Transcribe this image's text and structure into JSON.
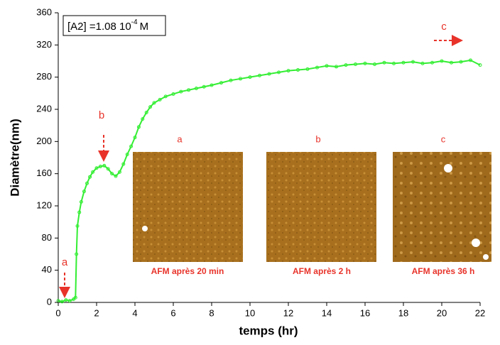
{
  "chart_data": {
    "type": "line",
    "xlabel": "temps (hr)",
    "ylabel": "Diamètre(nm)",
    "x": [
      0,
      0.2,
      0.4,
      0.6,
      0.8,
      0.9,
      0.95,
      1.0,
      1.1,
      1.2,
      1.35,
      1.5,
      1.65,
      1.8,
      2.0,
      2.2,
      2.4,
      2.6,
      2.8,
      3.0,
      3.2,
      3.4,
      3.6,
      3.8,
      4.0,
      4.2,
      4.4,
      4.6,
      4.8,
      5.0,
      5.3,
      5.6,
      6.0,
      6.4,
      6.8,
      7.2,
      7.6,
      8.0,
      8.5,
      9.0,
      9.5,
      10,
      10.5,
      11,
      11.5,
      12,
      12.5,
      13,
      13.5,
      14,
      14.5,
      15,
      15.5,
      16,
      16.5,
      17,
      17.5,
      18,
      18.5,
      19,
      19.5,
      20,
      20.5,
      21,
      21.5,
      22
    ],
    "series": [
      {
        "color": "#33ee33",
        "values": [
          2,
          1,
          3,
          2,
          4,
          6,
          60,
          95,
          112,
          125,
          138,
          148,
          156,
          162,
          167,
          169,
          170,
          166,
          160,
          157,
          162,
          172,
          184,
          194,
          205,
          218,
          228,
          236,
          243,
          248,
          252,
          256,
          259,
          262,
          264,
          266,
          268,
          270,
          273,
          276,
          278,
          280,
          282,
          284,
          286,
          288,
          289,
          290,
          292,
          294,
          293,
          295,
          296,
          297,
          296,
          298,
          297,
          298,
          299,
          297,
          298,
          300,
          298,
          299,
          301,
          295
        ]
      }
    ],
    "xlim": [
      0,
      22
    ],
    "xticks": [
      0,
      2,
      4,
      6,
      8,
      10,
      12,
      14,
      16,
      18,
      20,
      22
    ],
    "ylim": [
      0,
      360
    ],
    "yticks": [
      0,
      40,
      80,
      120,
      160,
      200,
      240,
      280,
      320,
      360
    ],
    "concentration": {
      "text": "[A2] =1.08 10",
      "exponent": "-4",
      "unit": "M"
    },
    "markers": [
      "a",
      "b",
      "c"
    ],
    "insets": [
      {
        "label": "a",
        "caption": "AFM après 20 min"
      },
      {
        "label": "b",
        "caption": "AFM après 2 h"
      },
      {
        "label": "c",
        "caption": "AFM après 36 h"
      }
    ]
  }
}
